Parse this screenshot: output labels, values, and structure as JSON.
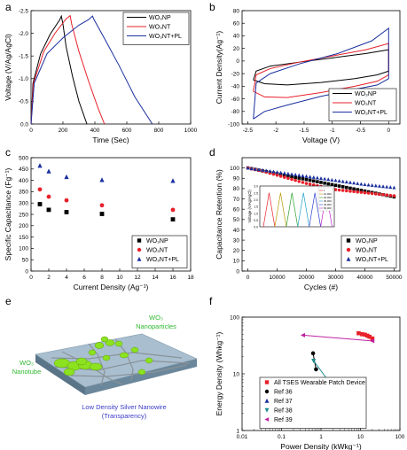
{
  "chart_data": [
    {
      "panel": "a",
      "type": "line",
      "xlabel": "Time (Sec)",
      "ylabel": "Voltage (V/Ag/AgCl)",
      "xlim": [
        0,
        1000
      ],
      "ylim": [
        0,
        -2.5
      ],
      "xticks": [
        0,
        200,
        400,
        600,
        800,
        1000
      ],
      "yticks": [
        0,
        -0.5,
        -1.0,
        -1.5,
        -2.0,
        -2.5
      ],
      "ytick_labels": [
        "0.0",
        "-0.5",
        "-1.0",
        "-1.5",
        "-2.0",
        "-2.5"
      ],
      "legend_position": "top-right",
      "series": [
        {
          "name": "WO₃NP",
          "color": "#000000",
          "x": [
            0,
            12,
            60,
            120,
            180,
            190,
            200,
            220,
            260,
            300,
            350
          ],
          "y": [
            0,
            -0.9,
            -1.55,
            -1.98,
            -2.3,
            -2.38,
            -2.2,
            -1.7,
            -1.05,
            -0.5,
            0
          ]
        },
        {
          "name": "WO₃NT",
          "color": "#e8202a",
          "x": [
            0,
            15,
            80,
            150,
            220,
            245,
            255,
            300,
            360,
            420,
            460
          ],
          "y": [
            0,
            -0.9,
            -1.6,
            -2.0,
            -2.32,
            -2.39,
            -2.2,
            -1.6,
            -0.95,
            -0.35,
            0
          ]
        },
        {
          "name": "WO₃NT+PL",
          "color": "#1a2f9e",
          "x": [
            0,
            20,
            100,
            200,
            300,
            360,
            385,
            395,
            450,
            550,
            650,
            760
          ],
          "y": [
            0,
            -0.9,
            -1.55,
            -1.9,
            -2.18,
            -2.3,
            -2.38,
            -2.3,
            -1.95,
            -1.3,
            -0.6,
            0
          ]
        }
      ]
    },
    {
      "panel": "b",
      "type": "line",
      "xlabel": "Voltage (V)",
      "ylabel": "Current Density(Ag⁻¹)",
      "xlim": [
        -2.6,
        0.2
      ],
      "ylim": [
        -100,
        80
      ],
      "xticks": [
        -2.5,
        -2.0,
        -1.5,
        -1.0,
        -0.5,
        0.0
      ],
      "yticks": [
        -100,
        -80,
        -60,
        -40,
        -20,
        0,
        20,
        40,
        60,
        80
      ],
      "legend_position": "bottom-right",
      "series": [
        {
          "name": "WO₃NP",
          "color": "#000000",
          "x": [
            -2.4,
            -2.2,
            -1.8,
            -1.2,
            -0.6,
            -0.2,
            0.0,
            0.0,
            -0.4,
            -1.0,
            -1.6,
            -2.1,
            -2.35,
            -2.4
          ],
          "y": [
            -30,
            -36,
            -38,
            -34,
            -28,
            -22,
            -16,
            18,
            12,
            5,
            -2,
            -8,
            -16,
            -30
          ]
        },
        {
          "name": "WO₃NT",
          "color": "#e8202a",
          "x": [
            -2.4,
            -2.2,
            -1.8,
            -1.2,
            -0.6,
            -0.2,
            0.0,
            0.0,
            -0.4,
            -1.0,
            -1.6,
            -2.1,
            -2.35,
            -2.4
          ],
          "y": [
            -48,
            -57,
            -58,
            -50,
            -40,
            -32,
            -22,
            28,
            18,
            8,
            -2,
            -12,
            -22,
            -48
          ]
        },
        {
          "name": "WO₃NT+PL",
          "color": "#1a2f9e",
          "x": [
            -2.4,
            -2.2,
            -1.8,
            -1.2,
            -0.6,
            -0.2,
            0.0,
            0.0,
            -0.3,
            -0.9,
            -1.6,
            -2.1,
            -2.35,
            -2.4
          ],
          "y": [
            -92,
            -80,
            -70,
            -56,
            -45,
            -38,
            -28,
            52,
            32,
            12,
            -5,
            -20,
            -35,
            -92
          ]
        }
      ]
    },
    {
      "panel": "c",
      "type": "scatter",
      "xlabel": "Current Density (Ag⁻¹)",
      "ylabel": "Specific Capacitance (Fg⁻¹)",
      "xlim": [
        0,
        18
      ],
      "ylim": [
        0,
        500
      ],
      "xticks": [
        0,
        2,
        4,
        6,
        8,
        10,
        12,
        14,
        16,
        18
      ],
      "yticks": [
        0,
        50,
        100,
        150,
        200,
        250,
        300,
        350,
        400,
        450,
        500
      ],
      "legend_position": "bottom-right",
      "series": [
        {
          "name": "WO₃NP",
          "color": "#000000",
          "marker": "square",
          "x": [
            1,
            2,
            4,
            8,
            16
          ],
          "y": [
            295,
            270,
            260,
            252,
            228
          ]
        },
        {
          "name": "WO₃NT",
          "color": "#e8202a",
          "marker": "circle",
          "x": [
            1,
            2,
            4,
            8,
            16
          ],
          "y": [
            360,
            328,
            312,
            290,
            270
          ]
        },
        {
          "name": "WO₃NT+PL",
          "color": "#1a2f9e",
          "marker": "triangle",
          "x": [
            1,
            2,
            4,
            8,
            16
          ],
          "y": [
            465,
            440,
            415,
            402,
            398
          ]
        }
      ]
    },
    {
      "panel": "d",
      "type": "scatter",
      "xlabel": "Cycles (#)",
      "ylabel": "Capacitance Retention (%)",
      "xlim": [
        -2000,
        52000
      ],
      "ylim": [
        0,
        110
      ],
      "xticks": [
        0,
        10000,
        20000,
        30000,
        40000,
        50000
      ],
      "yticks": [
        0,
        10,
        20,
        30,
        40,
        50,
        60,
        70,
        80,
        90,
        100
      ],
      "legend_position": "bottom-right",
      "series": [
        {
          "name": "WO₃NP",
          "color": "#000000",
          "marker": "square",
          "x": [
            0,
            50000
          ],
          "y": [
            100,
            72
          ]
        },
        {
          "name": "WO₃NT",
          "color": "#e8202a",
          "marker": "circle",
          "x": [
            0,
            5000,
            10000,
            20000,
            30000,
            40000,
            50000
          ],
          "y": [
            100,
            97,
            93,
            85,
            79,
            76,
            73
          ]
        },
        {
          "name": "WO₃NT+PL",
          "color": "#1a2f9e",
          "marker": "triangle",
          "x": [
            0,
            5000,
            10000,
            20000,
            30000,
            40000,
            50000
          ],
          "y": [
            100,
            98,
            96,
            92,
            88,
            84,
            81
          ]
        }
      ],
      "inset": {
        "ylabel": "Voltage (V/Ag/AgCl)",
        "ylim": [
          0,
          3
        ],
        "yticks": [
          0,
          0.5,
          1.0,
          1.5,
          2.0,
          2.5,
          3.0
        ],
        "ytick_labels": [
          "0.0",
          "0.5",
          "1.0",
          "1.5",
          "2.0",
          "2.5",
          "3.0"
        ],
        "legend": [
          "1",
          "10,000",
          "20,000",
          "30,000",
          "40,000",
          "50,000"
        ],
        "colors": [
          "#e8202a",
          "#b89a00",
          "#2aa02a",
          "#20a0c8",
          "#2a3fd0",
          "#c020c0"
        ],
        "peak_v": 2.5
      }
    },
    {
      "panel": "e",
      "type": "illustration",
      "labels": {
        "nanoparticles": [
          "WO₃",
          "Nanoparticles"
        ],
        "nanotube": [
          "WO₃",
          "Nanotube"
        ],
        "silver_nanowire": [
          "Low Density Silver Nanowire",
          "(Transparency)"
        ]
      }
    },
    {
      "panel": "f",
      "type": "scatter",
      "xlabel": "Power Density (kWkg⁻¹)",
      "ylabel": "Energy Density (Whkg⁻¹)",
      "xscale": "log",
      "yscale": "log",
      "xlim": [
        0.01,
        100
      ],
      "ylim": [
        1,
        100
      ],
      "xticks": [
        0.01,
        0.1,
        1,
        10,
        100
      ],
      "xtick_labels": [
        "0.01",
        "0.1",
        "1",
        "10",
        "100"
      ],
      "yticks": [
        1,
        10,
        100
      ],
      "ytick_labels": [
        "1",
        "10",
        "100"
      ],
      "legend_position": "bottom-right",
      "series": [
        {
          "name": "All TSES Wearable Patch Device",
          "color": "#e8202a",
          "marker": "square",
          "x": [
            9,
            11,
            13,
            15,
            17,
            20
          ],
          "y": [
            52,
            50,
            49,
            47,
            45,
            42
          ]
        },
        {
          "name": "Ref 36",
          "color": "#000000",
          "marker": "circle",
          "x": [
            0.63,
            0.75
          ],
          "y": [
            23,
            12
          ]
        },
        {
          "name": "Ref 37",
          "color": "#1a2f9e",
          "marker": "triangle",
          "x": [
            0.5,
            8
          ],
          "y": [
            3.5,
            6
          ]
        },
        {
          "name": "Ref 38",
          "color": "#1a8a8a",
          "marker": "triangle-down",
          "x": [
            0.65,
            3
          ],
          "y": [
            17,
            4
          ]
        },
        {
          "name": "Ref 39",
          "color": "#c020a0",
          "marker": "triangle-left",
          "x": [
            0.35,
            20
          ],
          "y": [
            48,
            38
          ]
        }
      ]
    }
  ],
  "panel_letters": [
    "a",
    "b",
    "c",
    "d",
    "e",
    "f"
  ]
}
